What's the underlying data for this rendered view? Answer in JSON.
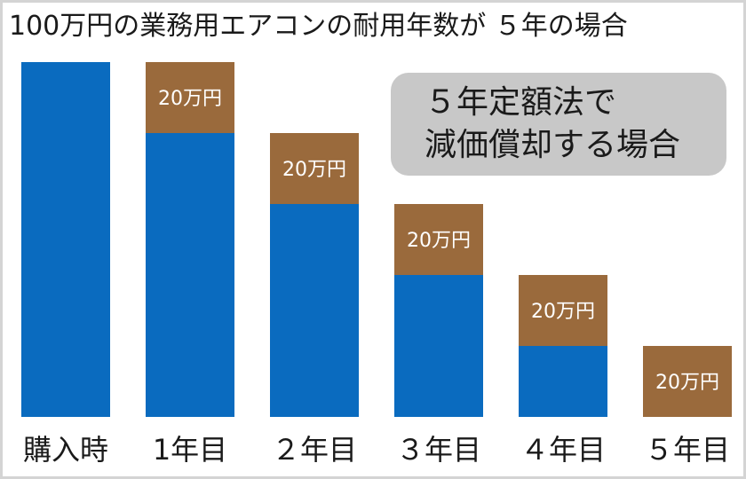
{
  "colors": {
    "remaining": "#0a6bbf",
    "depreciation": "#9a6a3c",
    "segment_label": "#ffffff",
    "text": "#1a1a1a",
    "callout_bg": "#c8c8c8"
  },
  "header": {
    "title": "100万円の業務用エアコンの耐用年数が ５年の場合"
  },
  "callout": {
    "line1": "５年定額法で",
    "line2": "減価償却する場合"
  },
  "chart_data": {
    "type": "bar",
    "stacked": true,
    "title": "100万円の業務用エアコンの耐用年数が ５年の場合",
    "categories": [
      "購入時",
      "1年目",
      "２年目",
      "３年目",
      "４年目",
      "５年目"
    ],
    "unit": "万円",
    "ylim": [
      0,
      100
    ],
    "grid": false,
    "series": [
      {
        "key": "remaining",
        "values": [
          100,
          80,
          60,
          40,
          20,
          0
        ]
      },
      {
        "key": "depreciation",
        "values": [
          0,
          20,
          20,
          20,
          20,
          20
        ],
        "labels": [
          "",
          "20万円",
          "20万円",
          "20万円",
          "20万円",
          "20万円"
        ]
      }
    ]
  }
}
